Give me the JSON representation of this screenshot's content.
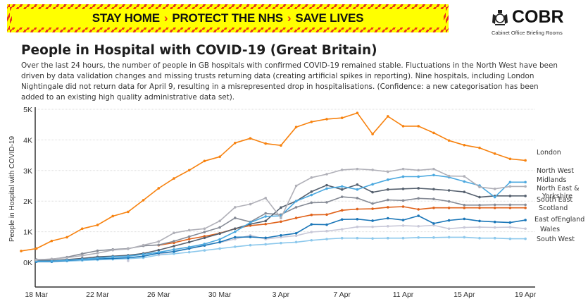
{
  "banner": {
    "part1": "STAY HOME",
    "part2": "PROTECT THE NHS",
    "part3": "SAVE LIVES",
    "separator": "›",
    "colors": {
      "background": "#ffff00",
      "stripe": "#e8341c"
    }
  },
  "logo": {
    "icon": "royal-crest-icon",
    "name": "COBR",
    "subtitle": "Cabinet Office Briefing Rooms"
  },
  "title": "People in Hospital with COVID-19 (Great Britain)",
  "description": "Over the last 24 hours, the number of people in GB hospitals with confirmed COVID-19 remained stable. Fluctuations in the North West have been driven by data validation changes and missing trusts returning data (creating artificial spikes in reporting). Nine hospitals, including London Nightingale did not return data for April 9, resulting in a misrepresented drop in hospitalisations. (Confidence: a new categorisation has been added to an existing high quality administrative data set).",
  "chart_data": {
    "type": "line",
    "title": "People in Hospital with COVID-19 (Great Britain)",
    "xlabel": "",
    "ylabel": "People in Hospital with COVID-19",
    "ylim": [
      -800,
      5000
    ],
    "yticks": [
      0,
      1000,
      2000,
      3000,
      4000,
      5000
    ],
    "ytick_labels": [
      "0K",
      "1K",
      "2K",
      "3K",
      "4K",
      "5K"
    ],
    "x_start": "17 Mar",
    "x": [
      "17 Mar",
      "18 Mar",
      "19 Mar",
      "20 Mar",
      "21 Mar",
      "22 Mar",
      "23 Mar",
      "24 Mar",
      "25 Mar",
      "26 Mar",
      "27 Mar",
      "28 Mar",
      "29 Mar",
      "30 Mar",
      "31 Mar",
      "1 Apr",
      "2 Apr",
      "3 Apr",
      "4 Apr",
      "5 Apr",
      "6 Apr",
      "7 Apr",
      "8 Apr",
      "9 Apr",
      "10 Apr",
      "11 Apr",
      "12 Apr",
      "13 Apr",
      "14 Apr",
      "15 Apr",
      "16 Apr",
      "17 Apr",
      "18 Apr",
      "19 Apr"
    ],
    "xtick_labels": [
      "18 Mar",
      "22 Mar",
      "26 Mar",
      "30 Mar",
      "3 Apr",
      "7 Apr",
      "11 Apr",
      "15 Apr",
      "19 Apr"
    ],
    "xtick_index": [
      1,
      5,
      9,
      13,
      17,
      21,
      25,
      29,
      33
    ],
    "grid": true,
    "legend_placement": "right (end-of-line labels)",
    "series": [
      {
        "name": "London",
        "color": "#f7820f",
        "label_lines": [
          "London"
        ],
        "values": [
          370,
          450,
          700,
          820,
          1100,
          1220,
          1510,
          1650,
          2030,
          2420,
          2740,
          3010,
          3310,
          3450,
          3900,
          4050,
          3880,
          3820,
          4420,
          4590,
          4680,
          4720,
          4880,
          4190,
          4770,
          4450,
          4450,
          4230,
          3980,
          3830,
          3740,
          3550,
          3380,
          3330
        ]
      },
      {
        "name": "North West",
        "color": "#b0b0b8",
        "label_lines": [
          "North West"
        ],
        "values": [
          null,
          80,
          110,
          150,
          220,
          300,
          400,
          440,
          560,
          680,
          960,
          1050,
          1100,
          1350,
          1800,
          1900,
          2100,
          1450,
          2500,
          2770,
          2880,
          3020,
          3050,
          3020,
          2960,
          3050,
          3010,
          3050,
          2820,
          2810,
          2460,
          2400,
          2480,
          2480
        ]
      },
      {
        "name": "Midlands",
        "color": "#4aa8df",
        "label_lines": [
          "Midlands"
        ],
        "values": [
          null,
          40,
          40,
          70,
          100,
          140,
          180,
          200,
          260,
          330,
          420,
          500,
          600,
          750,
          1000,
          1300,
          1500,
          1520,
          2000,
          2200,
          2410,
          2480,
          2380,
          2550,
          2700,
          2800,
          2800,
          2850,
          2780,
          2640,
          2510,
          2130,
          2620,
          2620
        ]
      },
      {
        "name": "North East & Yorkshire",
        "color": "#55606e",
        "label_lines": [
          "North East &",
          "Yorkshire"
        ],
        "values": [
          null,
          60,
          60,
          90,
          130,
          180,
          200,
          230,
          290,
          400,
          530,
          660,
          800,
          940,
          1100,
          1250,
          1350,
          1790,
          2000,
          2310,
          2520,
          2380,
          2540,
          2290,
          2380,
          2400,
          2420,
          2390,
          2350,
          2300,
          2130,
          2170,
          2170,
          2170
        ]
      },
      {
        "name": "South East",
        "color": "#858a95",
        "label_lines": [
          "South East"
        ],
        "values": [
          null,
          90,
          100,
          170,
          280,
          380,
          420,
          450,
          540,
          570,
          690,
          840,
          990,
          1140,
          1450,
          1320,
          1600,
          1560,
          1800,
          1950,
          1960,
          2140,
          2100,
          1920,
          2040,
          2020,
          2090,
          2070,
          1990,
          1870,
          1870,
          1880,
          1880,
          1880
        ]
      },
      {
        "name": "Scotland",
        "color": "#e0621a",
        "label_lines": [
          "Scotland"
        ],
        "values": [
          null,
          null,
          null,
          null,
          null,
          null,
          null,
          null,
          null,
          560,
          640,
          760,
          850,
          950,
          1100,
          1200,
          1250,
          1330,
          1450,
          1550,
          1560,
          1700,
          1740,
          1750,
          1800,
          1820,
          1730,
          1780,
          1780,
          1780,
          1780,
          1780,
          1780,
          1780
        ]
      },
      {
        "name": "East of England",
        "color": "#1a76b8",
        "label_lines": [
          "East ofEngland"
        ],
        "values": [
          null,
          20,
          20,
          60,
          90,
          110,
          130,
          150,
          200,
          300,
          350,
          450,
          550,
          660,
          820,
          830,
          800,
          880,
          950,
          1240,
          1230,
          1400,
          1410,
          1360,
          1440,
          1380,
          1520,
          1270,
          1370,
          1420,
          1350,
          1320,
          1300,
          1380
        ]
      },
      {
        "name": "Wales",
        "color": "#c8c8d8",
        "label_lines": [
          "Wales"
        ],
        "values": [
          null,
          null,
          null,
          null,
          null,
          null,
          null,
          50,
          null,
          250,
          360,
          460,
          570,
          650,
          760,
          880,
          760,
          820,
          870,
          990,
          1020,
          1080,
          1160,
          1160,
          1180,
          1200,
          1180,
          1210,
          1100,
          1140,
          1150,
          1140,
          1150,
          1100
        ]
      },
      {
        "name": "South West",
        "color": "#8cc8ec",
        "label_lines": [
          "South West"
        ],
        "values": [
          null,
          30,
          30,
          40,
          60,
          80,
          100,
          120,
          150,
          240,
          280,
          330,
          390,
          450,
          510,
          560,
          590,
          630,
          660,
          720,
          760,
          790,
          790,
          780,
          790,
          790,
          810,
          810,
          820,
          820,
          790,
          790,
          770,
          770
        ]
      }
    ]
  }
}
